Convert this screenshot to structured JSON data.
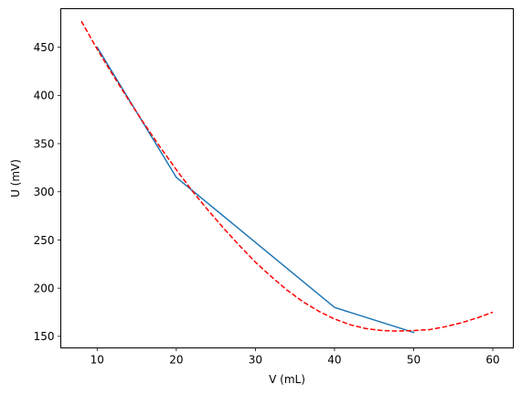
{
  "chart_data": {
    "type": "line",
    "title": "",
    "xlabel": "V (mL)",
    "ylabel": "U (mV)",
    "xlim": [
      5.4,
      62.6
    ],
    "ylim": [
      138,
      490
    ],
    "xticks": [
      10,
      20,
      30,
      40,
      50,
      60
    ],
    "yticks": [
      150,
      200,
      250,
      300,
      350,
      400,
      450
    ],
    "grid": false,
    "legend": "none",
    "series": [
      {
        "style": "solid",
        "color": "#1f77b4",
        "x": [
          10,
          20,
          40,
          50
        ],
        "y": [
          450,
          315,
          180,
          154
        ]
      },
      {
        "style": "dashed",
        "color": "#ff0000",
        "x": [
          8,
          10,
          12,
          14,
          16,
          18,
          20,
          22,
          24,
          26,
          28,
          30,
          32,
          34,
          36,
          38,
          40,
          42,
          44,
          46,
          48,
          50,
          52,
          54,
          56,
          58,
          60
        ],
        "y": [
          477,
          448,
          421,
          395,
          370,
          346,
          323,
          301,
          281,
          262,
          244,
          227,
          212,
          198,
          186,
          176,
          168,
          162,
          158,
          156,
          155.5,
          156,
          157,
          160,
          164,
          169,
          175
        ]
      }
    ]
  }
}
